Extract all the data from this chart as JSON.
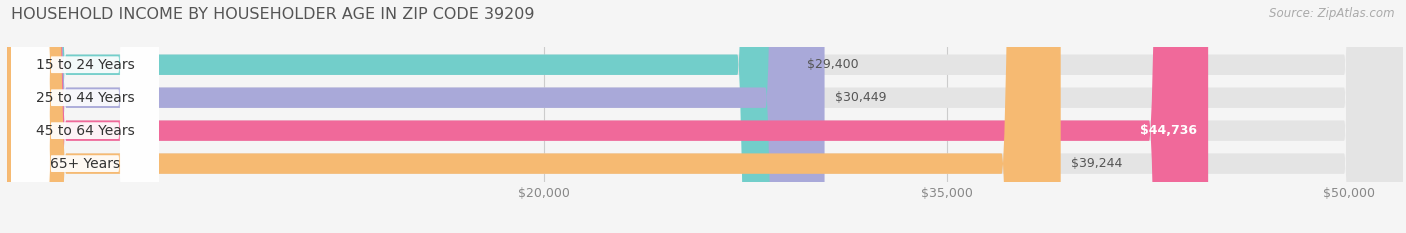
{
  "title": "HOUSEHOLD INCOME BY HOUSEHOLDER AGE IN ZIP CODE 39209",
  "source": "Source: ZipAtlas.com",
  "categories": [
    "15 to 24 Years",
    "25 to 44 Years",
    "45 to 64 Years",
    "65+ Years"
  ],
  "values": [
    29400,
    30449,
    44736,
    39244
  ],
  "labels": [
    "$29,400",
    "$30,449",
    "$44,736",
    "$39,244"
  ],
  "bar_colors": [
    "#72ceca",
    "#a9a9d9",
    "#f0699a",
    "#f6ba72"
  ],
  "xmin": 0,
  "xmax": 52000,
  "xticks": [
    20000,
    35000,
    50000
  ],
  "xtick_labels": [
    "$20,000",
    "$35,000",
    "$50,000"
  ],
  "title_fontsize": 11.5,
  "source_fontsize": 8.5,
  "label_fontsize": 9,
  "tick_fontsize": 9,
  "cat_fontsize": 10,
  "background_color": "#f5f5f5",
  "bar_bg_color": "#e4e4e4",
  "grid_color": "#cccccc",
  "label_inside_color": "white",
  "label_outside_color": "#555555",
  "cat_label_color": "#333333",
  "label_threshold": 40000
}
